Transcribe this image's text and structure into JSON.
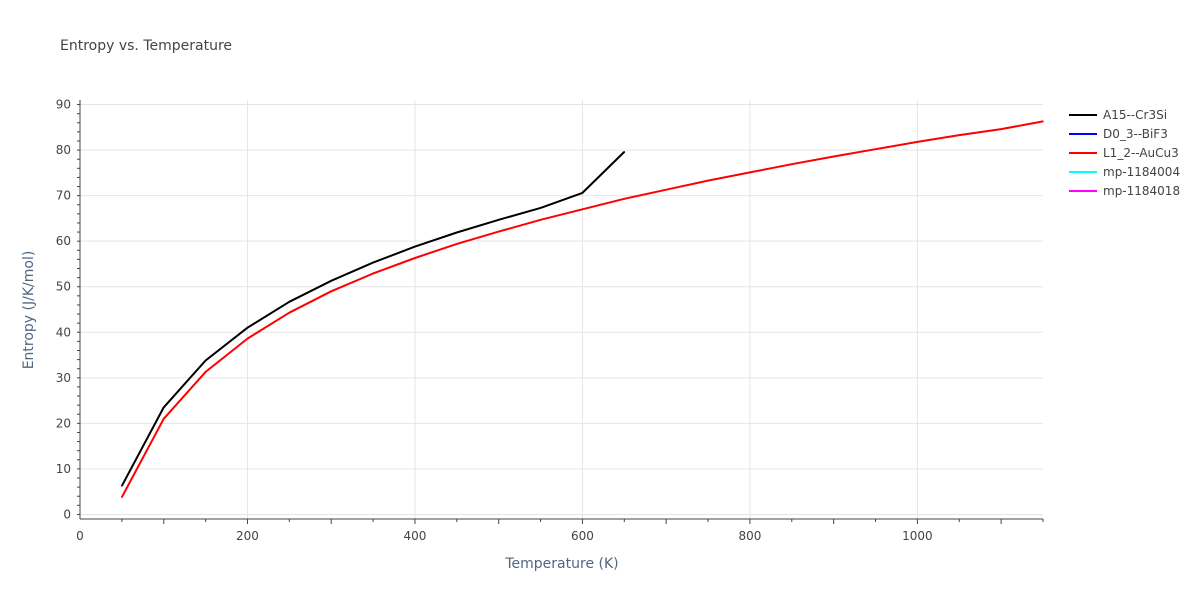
{
  "chart_data": {
    "type": "line",
    "title": "Entropy vs. Temperature",
    "xlabel": "Temperature (K)",
    "ylabel": "Entropy (J/K/mol)",
    "xlim": [
      0,
      1150
    ],
    "ylim": [
      -1,
      91
    ],
    "xticks": [
      0,
      200,
      400,
      600,
      800,
      1000
    ],
    "yticks": [
      0,
      10,
      20,
      30,
      40,
      50,
      60,
      70,
      80,
      90
    ],
    "grid": true,
    "legend_position": "top-right",
    "series": [
      {
        "name": "A15--Cr3Si",
        "color": "#000000",
        "x": [
          50,
          100,
          150,
          200,
          250,
          300,
          350,
          400,
          450,
          500,
          550,
          600,
          650
        ],
        "y": [
          6.3,
          23.5,
          33.8,
          41.0,
          46.7,
          51.3,
          55.3,
          58.8,
          61.9,
          64.7,
          67.3,
          70.6,
          79.6
        ]
      },
      {
        "name": "D0_3--BiF3",
        "color": "#0000ff",
        "x": [],
        "y": []
      },
      {
        "name": "L1_2--AuCu3",
        "color": "#ff0000",
        "x": [
          50,
          100,
          150,
          200,
          250,
          300,
          350,
          400,
          450,
          500,
          550,
          600,
          650,
          700,
          750,
          800,
          850,
          900,
          950,
          1000,
          1050,
          1100,
          1150
        ],
        "y": [
          3.8,
          21.0,
          31.3,
          38.6,
          44.3,
          49.0,
          52.9,
          56.3,
          59.4,
          62.1,
          64.7,
          67.0,
          69.3,
          71.3,
          73.3,
          75.1,
          76.9,
          78.6,
          80.2,
          81.8,
          83.3,
          84.6,
          86.3
        ]
      },
      {
        "name": "mp-1184004",
        "color": "#00ffff",
        "x": [],
        "y": []
      },
      {
        "name": "mp-1184018",
        "color": "#ff00ff",
        "x": [],
        "y": []
      }
    ]
  }
}
